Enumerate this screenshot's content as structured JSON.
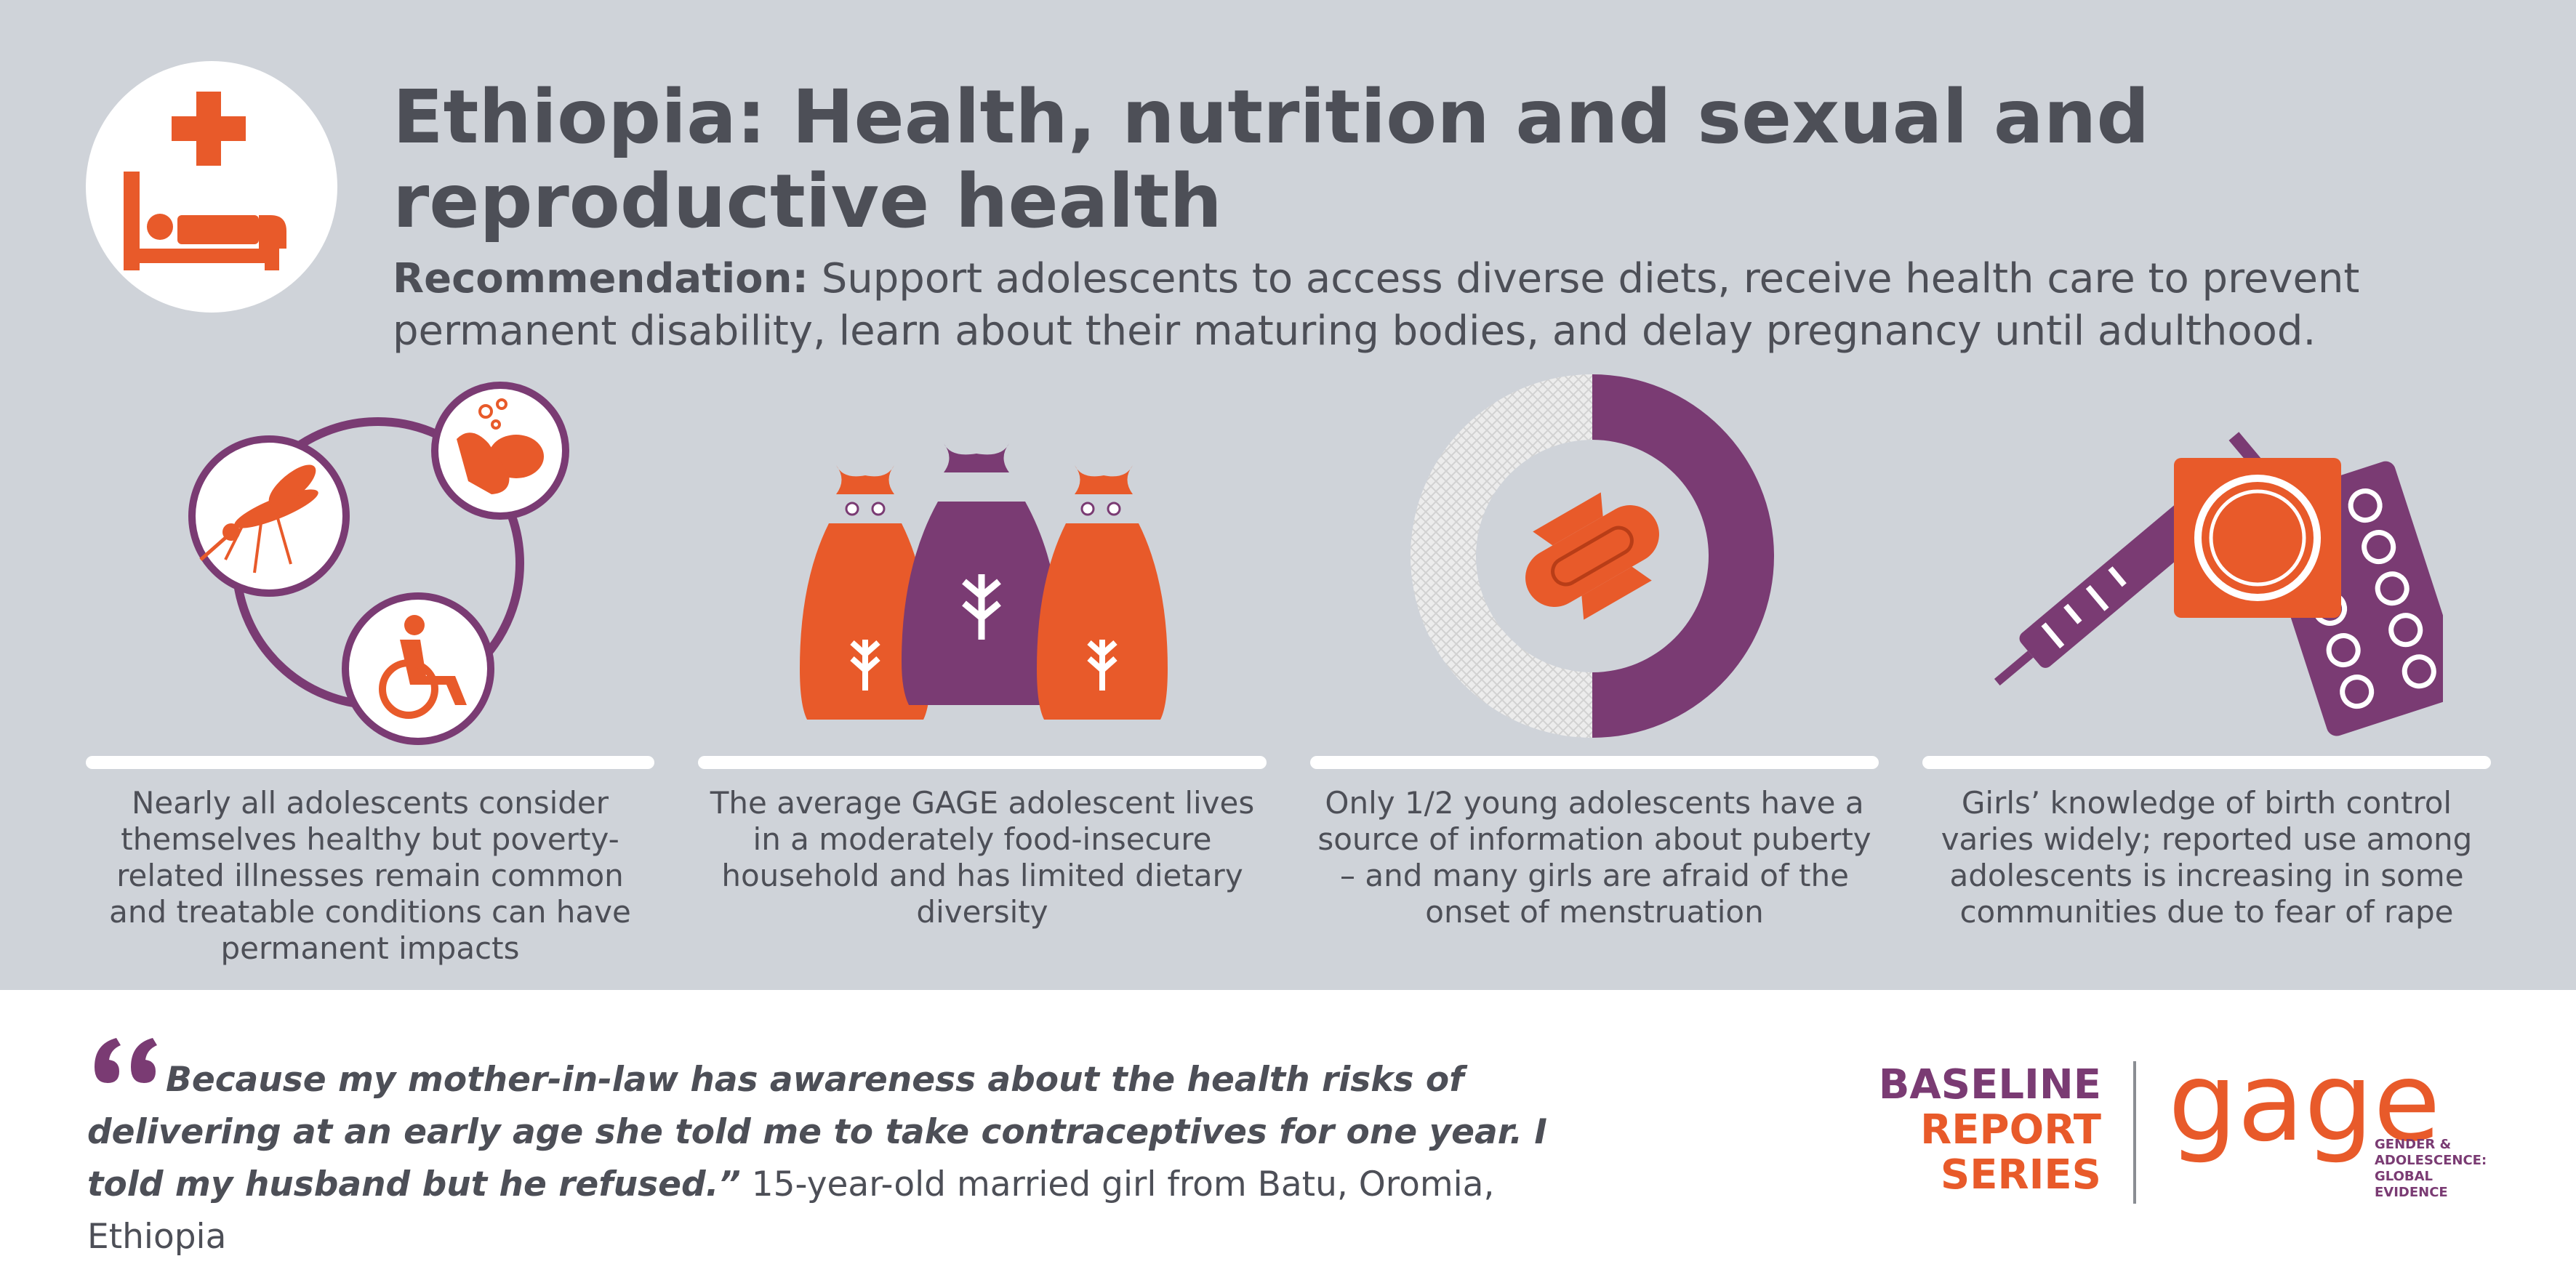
{
  "header": {
    "title": "Ethiopia: Health, nutrition and sexual and reproductive health",
    "recommendation_label": "Recommendation:",
    "recommendation_text": "Support adolescents to access diverse diets, receive health care to prevent permanent disability, learn about their maturing bodies, and delay pregnancy until adulthood."
  },
  "icons": {
    "header": "hospital-bed-cross-icon",
    "panel_1": [
      "mosquito-icon",
      "handwashing-icon",
      "wheelchair-icon"
    ],
    "panel_2": "grain-sacks-icon",
    "panel_3": "sanitary-pad-icon",
    "panel_4": [
      "syringe-icon",
      "condom-icon",
      "pill-pack-icon"
    ]
  },
  "findings": [
    {
      "text": "Nearly all adolescents consider themselves healthy but poverty-related illnesses remain common and treatable conditions can have permanent impacts"
    },
    {
      "text": "The average GAGE adolescent lives in a moderately food-insecure household and has limited dietary diversity"
    },
    {
      "text": "Only 1/2 young adolescents have a source of information about puberty – and many girls are afraid of the onset of menstruation"
    },
    {
      "text": "Girls’ knowledge of birth control varies widely; reported use among adolescents is increasing in some communities due to fear of rape"
    }
  ],
  "puberty_info_share": 0.5,
  "quote": {
    "text": "Because my mother-in-law has awareness about the health risks of delivering at an early age she told me to take contraceptives for one year. I told my husband but he refused.”",
    "attribution": "15-year-old married girl from Batu, Oromia, Ethiopia"
  },
  "branding": {
    "series_line_1": "BASELINE",
    "series_line_2": "REPORT",
    "series_line_3": "SERIES",
    "logo_text": "gage",
    "logo_tagline_1": "GENDER &",
    "logo_tagline_2": "ADOLESCENCE:",
    "logo_tagline_3": "GLOBAL",
    "logo_tagline_4": "EVIDENCE"
  },
  "colors": {
    "background_top": "#cfd3d9",
    "text": "#4d4f57",
    "orange": "#e85a2a",
    "purple": "#7a3b73",
    "white": "#ffffff"
  }
}
